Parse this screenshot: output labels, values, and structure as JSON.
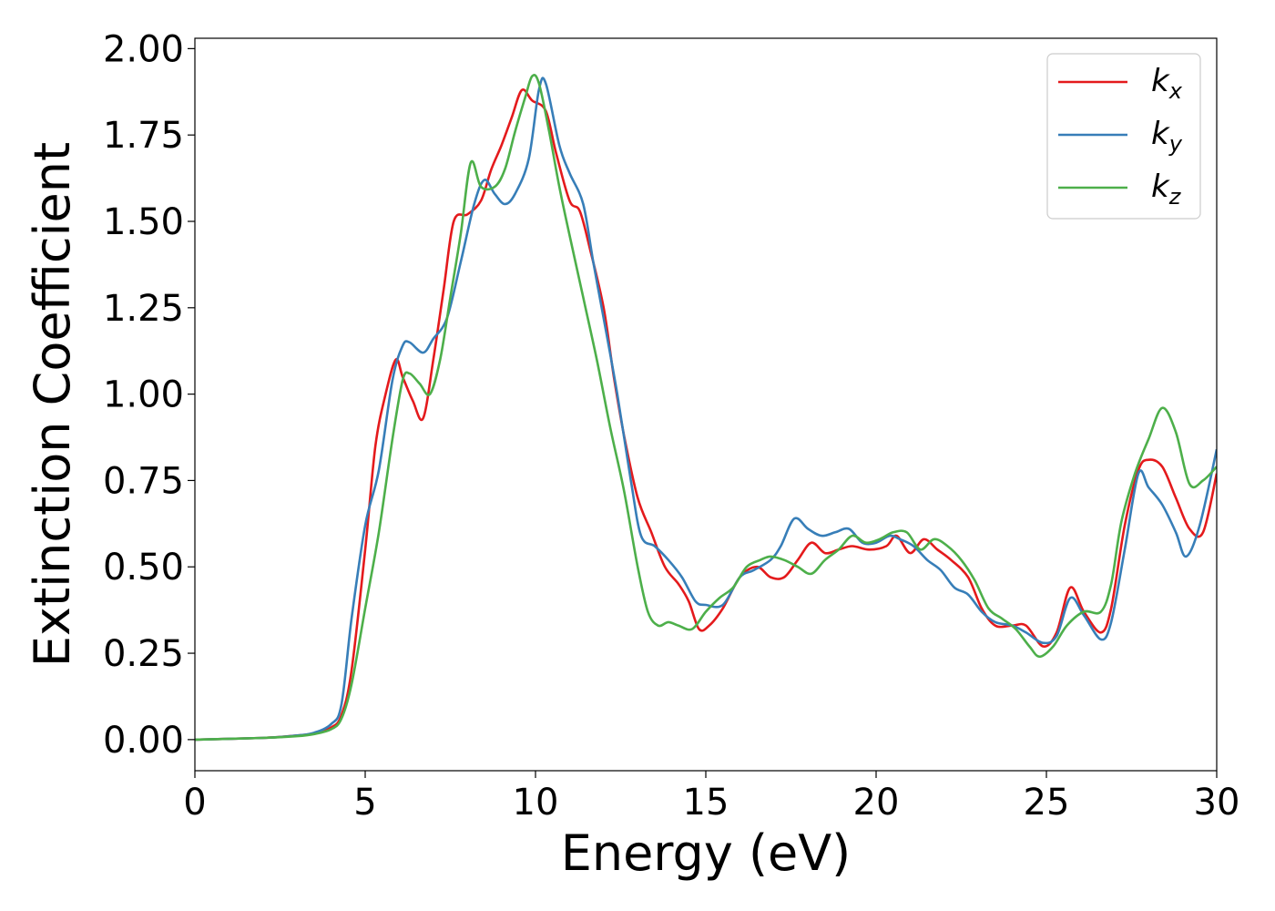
{
  "chart_data": {
    "type": "line",
    "xlabel": "Energy (eV)",
    "ylabel": "Extinction Coefficient",
    "xlim": [
      0,
      30
    ],
    "ylim": [
      -0.09,
      2.03
    ],
    "xticks": [
      0,
      5,
      10,
      15,
      20,
      25,
      30
    ],
    "xtick_labels": [
      "0",
      "5",
      "10",
      "15",
      "20",
      "25",
      "30"
    ],
    "yticks": [
      0,
      0.25,
      0.5,
      0.75,
      1.0,
      1.25,
      1.5,
      1.75,
      2.0
    ],
    "ytick_labels": [
      "0.00",
      "0.25",
      "0.50",
      "0.75",
      "1.00",
      "1.25",
      "1.50",
      "1.75",
      "2.00"
    ],
    "grid": false,
    "legend_position": "top-right",
    "series": [
      {
        "name": "k",
        "subscript": "x",
        "color": "#e41a1c",
        "points": [
          [
            0,
            0
          ],
          [
            2,
            0.005
          ],
          [
            3,
            0.012
          ],
          [
            3.5,
            0.018
          ],
          [
            4,
            0.035
          ],
          [
            4.3,
            0.07
          ],
          [
            4.6,
            0.2
          ],
          [
            5,
            0.55
          ],
          [
            5.3,
            0.85
          ],
          [
            5.6,
            1.0
          ],
          [
            5.9,
            1.1
          ],
          [
            6.1,
            1.05
          ],
          [
            6.4,
            0.98
          ],
          [
            6.7,
            0.93
          ],
          [
            7,
            1.1
          ],
          [
            7.3,
            1.3
          ],
          [
            7.6,
            1.5
          ],
          [
            8,
            1.52
          ],
          [
            8.4,
            1.56
          ],
          [
            8.7,
            1.65
          ],
          [
            9,
            1.72
          ],
          [
            9.3,
            1.8
          ],
          [
            9.6,
            1.88
          ],
          [
            9.9,
            1.85
          ],
          [
            10.3,
            1.82
          ],
          [
            10.6,
            1.7
          ],
          [
            11,
            1.56
          ],
          [
            11.3,
            1.53
          ],
          [
            11.6,
            1.42
          ],
          [
            12,
            1.25
          ],
          [
            12.3,
            1.05
          ],
          [
            12.6,
            0.88
          ],
          [
            13,
            0.7
          ],
          [
            13.4,
            0.6
          ],
          [
            13.8,
            0.5
          ],
          [
            14.2,
            0.45
          ],
          [
            14.5,
            0.4
          ],
          [
            14.8,
            0.32
          ],
          [
            15.1,
            0.33
          ],
          [
            15.5,
            0.38
          ],
          [
            16,
            0.47
          ],
          [
            16.5,
            0.5
          ],
          [
            16.9,
            0.47
          ],
          [
            17.3,
            0.47
          ],
          [
            17.7,
            0.52
          ],
          [
            18.1,
            0.57
          ],
          [
            18.5,
            0.54
          ],
          [
            18.9,
            0.55
          ],
          [
            19.3,
            0.56
          ],
          [
            19.8,
            0.55
          ],
          [
            20.3,
            0.56
          ],
          [
            20.6,
            0.59
          ],
          [
            21,
            0.54
          ],
          [
            21.4,
            0.58
          ],
          [
            21.8,
            0.55
          ],
          [
            22.2,
            0.52
          ],
          [
            22.7,
            0.47
          ],
          [
            23.1,
            0.38
          ],
          [
            23.5,
            0.33
          ],
          [
            24,
            0.33
          ],
          [
            24.4,
            0.33
          ],
          [
            24.9,
            0.27
          ],
          [
            25.3,
            0.31
          ],
          [
            25.7,
            0.44
          ],
          [
            26.1,
            0.37
          ],
          [
            26.6,
            0.31
          ],
          [
            26.9,
            0.38
          ],
          [
            27.3,
            0.62
          ],
          [
            27.7,
            0.78
          ],
          [
            28,
            0.81
          ],
          [
            28.4,
            0.79
          ],
          [
            28.8,
            0.7
          ],
          [
            29.2,
            0.61
          ],
          [
            29.6,
            0.6
          ],
          [
            30,
            0.77
          ]
        ]
      },
      {
        "name": "k",
        "subscript": "y",
        "color": "#377eb8",
        "points": [
          [
            0,
            0
          ],
          [
            2,
            0.005
          ],
          [
            3,
            0.012
          ],
          [
            3.5,
            0.02
          ],
          [
            4,
            0.045
          ],
          [
            4.3,
            0.1
          ],
          [
            4.6,
            0.35
          ],
          [
            5,
            0.62
          ],
          [
            5.4,
            0.78
          ],
          [
            5.8,
            1.04
          ],
          [
            6.1,
            1.14
          ],
          [
            6.3,
            1.15
          ],
          [
            6.7,
            1.12
          ],
          [
            7,
            1.16
          ],
          [
            7.4,
            1.22
          ],
          [
            7.8,
            1.38
          ],
          [
            8.2,
            1.55
          ],
          [
            8.5,
            1.62
          ],
          [
            8.8,
            1.58
          ],
          [
            9.1,
            1.55
          ],
          [
            9.4,
            1.58
          ],
          [
            9.8,
            1.68
          ],
          [
            10.1,
            1.88
          ],
          [
            10.3,
            1.9
          ],
          [
            10.7,
            1.72
          ],
          [
            11,
            1.64
          ],
          [
            11.4,
            1.55
          ],
          [
            11.7,
            1.38
          ],
          [
            12,
            1.22
          ],
          [
            12.4,
            1.0
          ],
          [
            12.8,
            0.75
          ],
          [
            13.1,
            0.59
          ],
          [
            13.5,
            0.56
          ],
          [
            13.9,
            0.52
          ],
          [
            14.3,
            0.47
          ],
          [
            14.7,
            0.4
          ],
          [
            15,
            0.39
          ],
          [
            15.5,
            0.39
          ],
          [
            16,
            0.47
          ],
          [
            16.4,
            0.49
          ],
          [
            16.9,
            0.52
          ],
          [
            17.2,
            0.56
          ],
          [
            17.6,
            0.64
          ],
          [
            18,
            0.61
          ],
          [
            18.4,
            0.59
          ],
          [
            18.8,
            0.6
          ],
          [
            19.2,
            0.61
          ],
          [
            19.6,
            0.57
          ],
          [
            20,
            0.57
          ],
          [
            20.4,
            0.59
          ],
          [
            20.7,
            0.58
          ],
          [
            21.1,
            0.56
          ],
          [
            21.5,
            0.52
          ],
          [
            21.9,
            0.49
          ],
          [
            22.3,
            0.44
          ],
          [
            22.7,
            0.42
          ],
          [
            23.1,
            0.37
          ],
          [
            23.5,
            0.34
          ],
          [
            24,
            0.33
          ],
          [
            24.4,
            0.31
          ],
          [
            24.9,
            0.28
          ],
          [
            25.3,
            0.3
          ],
          [
            25.7,
            0.41
          ],
          [
            26.1,
            0.36
          ],
          [
            26.6,
            0.29
          ],
          [
            26.9,
            0.34
          ],
          [
            27.3,
            0.55
          ],
          [
            27.7,
            0.77
          ],
          [
            28,
            0.73
          ],
          [
            28.4,
            0.68
          ],
          [
            28.8,
            0.6
          ],
          [
            29.1,
            0.53
          ],
          [
            29.5,
            0.62
          ],
          [
            30,
            0.84
          ]
        ]
      },
      {
        "name": "k",
        "subscript": "z",
        "color": "#4daf4a",
        "points": [
          [
            0,
            0
          ],
          [
            2,
            0.005
          ],
          [
            3,
            0.01
          ],
          [
            3.5,
            0.016
          ],
          [
            4,
            0.03
          ],
          [
            4.3,
            0.06
          ],
          [
            4.6,
            0.16
          ],
          [
            5,
            0.38
          ],
          [
            5.4,
            0.6
          ],
          [
            5.8,
            0.87
          ],
          [
            6.1,
            1.04
          ],
          [
            6.3,
            1.06
          ],
          [
            6.6,
            1.03
          ],
          [
            6.9,
            1.0
          ],
          [
            7.2,
            1.1
          ],
          [
            7.5,
            1.28
          ],
          [
            7.8,
            1.46
          ],
          [
            8.1,
            1.67
          ],
          [
            8.4,
            1.6
          ],
          [
            8.8,
            1.6
          ],
          [
            9.1,
            1.65
          ],
          [
            9.4,
            1.76
          ],
          [
            9.7,
            1.86
          ],
          [
            9.9,
            1.92
          ],
          [
            10.1,
            1.9
          ],
          [
            10.4,
            1.76
          ],
          [
            10.7,
            1.6
          ],
          [
            11,
            1.46
          ],
          [
            11.4,
            1.28
          ],
          [
            11.8,
            1.1
          ],
          [
            12.2,
            0.9
          ],
          [
            12.6,
            0.72
          ],
          [
            13,
            0.5
          ],
          [
            13.3,
            0.37
          ],
          [
            13.6,
            0.33
          ],
          [
            13.9,
            0.34
          ],
          [
            14.2,
            0.33
          ],
          [
            14.6,
            0.32
          ],
          [
            15,
            0.37
          ],
          [
            15.4,
            0.41
          ],
          [
            15.8,
            0.44
          ],
          [
            16.2,
            0.5
          ],
          [
            16.6,
            0.52
          ],
          [
            16.9,
            0.53
          ],
          [
            17.3,
            0.52
          ],
          [
            17.7,
            0.5
          ],
          [
            18.1,
            0.48
          ],
          [
            18.5,
            0.52
          ],
          [
            18.9,
            0.55
          ],
          [
            19.3,
            0.59
          ],
          [
            19.7,
            0.57
          ],
          [
            20.1,
            0.58
          ],
          [
            20.5,
            0.6
          ],
          [
            20.9,
            0.6
          ],
          [
            21.3,
            0.55
          ],
          [
            21.7,
            0.58
          ],
          [
            22.1,
            0.56
          ],
          [
            22.5,
            0.52
          ],
          [
            22.9,
            0.46
          ],
          [
            23.3,
            0.38
          ],
          [
            23.7,
            0.35
          ],
          [
            24.1,
            0.32
          ],
          [
            24.5,
            0.27
          ],
          [
            24.8,
            0.24
          ],
          [
            25.2,
            0.27
          ],
          [
            25.6,
            0.33
          ],
          [
            26.1,
            0.37
          ],
          [
            26.6,
            0.37
          ],
          [
            26.9,
            0.45
          ],
          [
            27.2,
            0.63
          ],
          [
            27.6,
            0.77
          ],
          [
            28,
            0.87
          ],
          [
            28.4,
            0.96
          ],
          [
            28.8,
            0.89
          ],
          [
            29.2,
            0.74
          ],
          [
            29.6,
            0.75
          ],
          [
            30,
            0.79
          ]
        ]
      }
    ]
  }
}
